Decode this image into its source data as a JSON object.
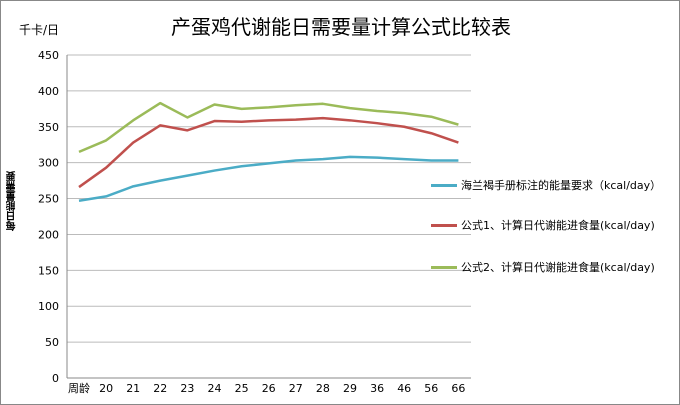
{
  "chart_data": {
    "type": "line",
    "title": "产蛋鸡代谢能日需要量计算公式比较表",
    "ylabel": "每日能量需要",
    "unit_label": "千卡/日",
    "xlabel": "",
    "ylim": [
      0,
      450
    ],
    "yticks": [
      0,
      50,
      100,
      150,
      200,
      250,
      300,
      350,
      400,
      450
    ],
    "grid": true,
    "legend_position": "right",
    "categories": [
      "周龄",
      "20",
      "21",
      "22",
      "23",
      "24",
      "25",
      "26",
      "27",
      "28",
      "29",
      "36",
      "46",
      "56",
      "66"
    ],
    "series": [
      {
        "name": "海兰褐手册标注的能量要求（kcal/day）",
        "color": "#4bacc6",
        "values": [
          247,
          253,
          267,
          275,
          282,
          289,
          295,
          299,
          303,
          305,
          308,
          307,
          305,
          303,
          303
        ]
      },
      {
        "name": "公式1、计算日代谢能进食量(kcal/day)",
        "color": "#c0504d",
        "values": [
          266,
          293,
          328,
          352,
          345,
          358,
          357,
          359,
          360,
          362,
          359,
          355,
          350,
          341,
          328
        ]
      },
      {
        "name": "公式2、计算日代谢能进食量(kcal/day)",
        "color": "#9bbb59",
        "values": [
          315,
          331,
          359,
          383,
          363,
          381,
          375,
          377,
          380,
          382,
          376,
          372,
          369,
          364,
          353
        ]
      }
    ]
  }
}
